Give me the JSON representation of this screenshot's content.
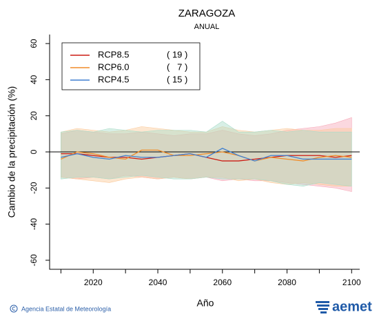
{
  "chart_data": {
    "type": "line_band",
    "title": "ZARAGOZA",
    "subtitle": "ANUAL",
    "ylabel": "Cambio de la precipitación (%)",
    "xlabel": "Año",
    "x": [
      2010,
      2015,
      2020,
      2025,
      2030,
      2035,
      2040,
      2045,
      2050,
      2055,
      2060,
      2065,
      2070,
      2075,
      2080,
      2085,
      2090,
      2095,
      2100
    ],
    "xlim": [
      2006.5,
      2102.5
    ],
    "xticks": [
      2020,
      2040,
      2060,
      2080,
      2100
    ],
    "xminor_ticks": [
      2010,
      2030,
      2050,
      2070,
      2090
    ],
    "ylim": [
      -65,
      65
    ],
    "yticks": [
      -60,
      -40,
      -20,
      0,
      20,
      40,
      60
    ],
    "reference_line": 0,
    "legend": "upper-left",
    "series": [
      {
        "name": "RCP8.5",
        "models": "( 19 )",
        "color": "#cc1a12",
        "band_color": "#f7a8b8",
        "values": [
          -1,
          -1,
          -2,
          -3,
          -3,
          -4,
          -3,
          -2,
          -1,
          -3,
          -5,
          -5,
          -4,
          -3,
          -2,
          -2,
          -2,
          -3,
          -2
        ],
        "upper": [
          10,
          12,
          11,
          10,
          10,
          11,
          10,
          9,
          10,
          10,
          12,
          10,
          9,
          10,
          12,
          13,
          14,
          16,
          19
        ],
        "lower": [
          -14,
          -15,
          -14,
          -15,
          -13,
          -14,
          -15,
          -14,
          -15,
          -14,
          -16,
          -15,
          -16,
          -16,
          -17,
          -18,
          -19,
          -20,
          -22
        ]
      },
      {
        "name": "RCP6.0",
        "models": "(   7 )",
        "color": "#f08c28",
        "band_color": "#fbc99a",
        "values": [
          -4,
          0,
          -1,
          -3,
          -4,
          1,
          1,
          -2,
          -2,
          -1,
          0,
          -2,
          -5,
          -3,
          -4,
          -5,
          -3,
          -2,
          -3
        ],
        "upper": [
          11,
          13,
          12,
          11,
          12,
          14,
          13,
          12,
          11,
          11,
          14,
          12,
          11,
          12,
          13,
          12,
          12,
          13,
          13
        ],
        "lower": [
          -14,
          -15,
          -16,
          -17,
          -15,
          -14,
          -15,
          -14,
          -15,
          -14,
          -14,
          -16,
          -15,
          -17,
          -18,
          -17,
          -18,
          -19,
          -19
        ]
      },
      {
        "name": "RCP4.5",
        "models": "( 15 )",
        "color": "#3f7fd0",
        "band_color": "#a8dcc8",
        "values": [
          -3,
          -1,
          -3,
          -4,
          -2,
          -3,
          -3,
          -2,
          -1,
          -3,
          2,
          -2,
          -5,
          -2,
          -2,
          -4,
          -4,
          -4,
          -4
        ],
        "upper": [
          11,
          12,
          11,
          13,
          12,
          11,
          12,
          12,
          12,
          11,
          17,
          11,
          11,
          12,
          11,
          12,
          11,
          11,
          11
        ],
        "lower": [
          -15,
          -14,
          -14,
          -15,
          -14,
          -13,
          -14,
          -15,
          -15,
          -14,
          -15,
          -15,
          -15,
          -16,
          -18,
          -19,
          -17,
          -18,
          -19
        ]
      }
    ],
    "footer": {
      "credit": "Agencia Estatal de Meteorología",
      "logo": "aemet"
    }
  }
}
